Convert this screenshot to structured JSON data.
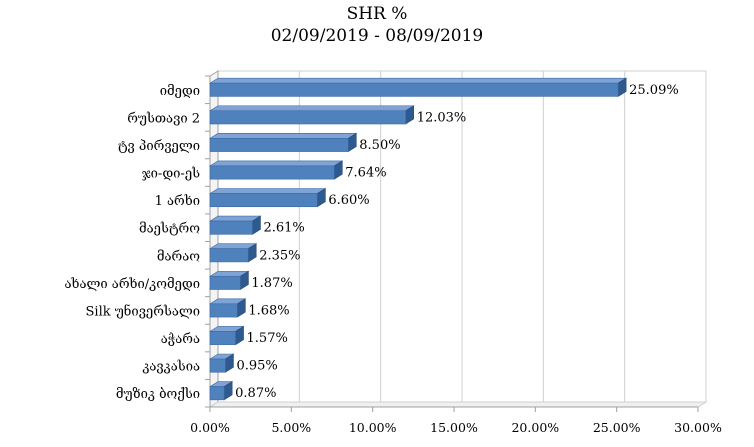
{
  "chart_data": {
    "type": "bar",
    "orientation": "horizontal",
    "title": "SHR %",
    "subtitle": "02/09/2019 - 08/09/2019",
    "categories": [
      "იმედი",
      "რუსთავი 2",
      "ტვ პირველი",
      "ჯი-დი-ეს",
      "1 არხი",
      "მაესტრო",
      "მარაო",
      "ახალი არხი/კომედი",
      "Silk უნივერსალი",
      "აჭარა",
      "კავკასია",
      "მუზიკ ბოქსი"
    ],
    "values": [
      25.09,
      12.03,
      8.5,
      7.64,
      6.6,
      2.61,
      2.35,
      1.87,
      1.68,
      1.57,
      0.95,
      0.87
    ],
    "value_labels": [
      "25.09%",
      "12.03%",
      "8.50%",
      "7.64%",
      "6.60%",
      "2.61%",
      "2.35%",
      "1.87%",
      "1.68%",
      "1.57%",
      "0.95%",
      "0.87%"
    ],
    "xlim": [
      0,
      30
    ],
    "xticks": [
      0,
      5,
      10,
      15,
      20,
      25,
      30
    ],
    "xtick_labels": [
      "0.00%",
      "5.00%",
      "10.00%",
      "15.00%",
      "20.00%",
      "25.00%",
      "30.00%"
    ],
    "grid": true,
    "xlabel": "",
    "ylabel": "",
    "colors": {
      "bar": "#4f81bd",
      "bar_side": "#2f5a8f",
      "bar_top": "#7fa3d4",
      "grid": "#d0d0d0",
      "axis": "#a0a0a0"
    }
  }
}
